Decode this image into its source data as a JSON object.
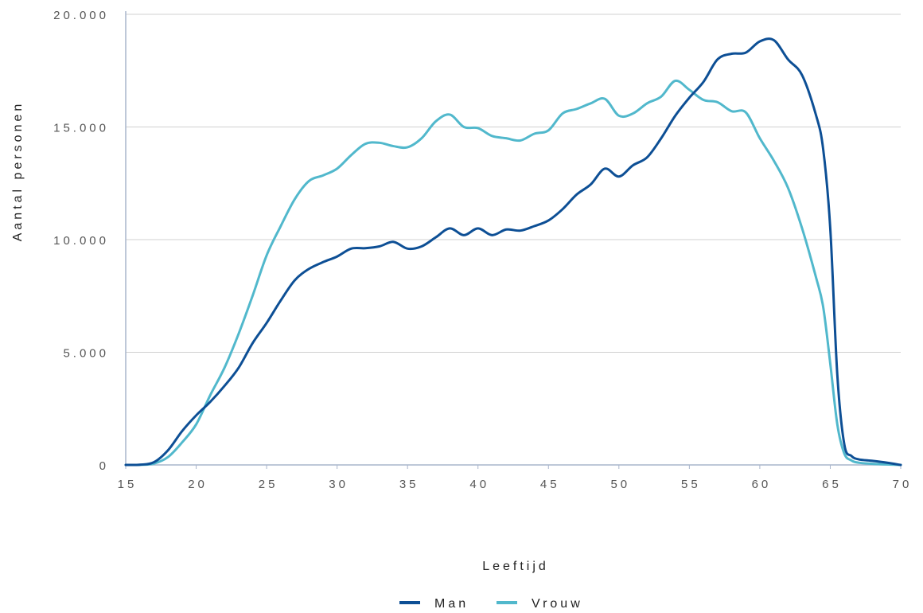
{
  "chart_data": {
    "type": "line",
    "xlabel": "Leeftijd",
    "ylabel": "Aantal personen",
    "xlim": [
      15,
      70
    ],
    "ylim": [
      0,
      20000
    ],
    "x_ticks": [
      15,
      20,
      25,
      30,
      35,
      40,
      45,
      50,
      55,
      60,
      65,
      70
    ],
    "y_ticks": [
      0,
      5000,
      10000,
      15000,
      20000
    ],
    "y_tick_labels": [
      "0",
      "5.000",
      "10.000",
      "15.000",
      "20.000"
    ],
    "grid": "horizontal",
    "legend_position": "bottom-center",
    "series": [
      {
        "name": "Man",
        "color": "#0d4f95",
        "points": [
          [
            15,
            0
          ],
          [
            16,
            10
          ],
          [
            17,
            120
          ],
          [
            18,
            650
          ],
          [
            19,
            1500
          ],
          [
            20,
            2200
          ],
          [
            21,
            2800
          ],
          [
            22,
            3500
          ],
          [
            23,
            4300
          ],
          [
            24,
            5400
          ],
          [
            25,
            6300
          ],
          [
            26,
            7300
          ],
          [
            27,
            8200
          ],
          [
            28,
            8700
          ],
          [
            29,
            9000
          ],
          [
            30,
            9250
          ],
          [
            31,
            9600
          ],
          [
            32,
            9620
          ],
          [
            33,
            9700
          ],
          [
            34,
            9900
          ],
          [
            35,
            9600
          ],
          [
            36,
            9700
          ],
          [
            37,
            10100
          ],
          [
            38,
            10500
          ],
          [
            39,
            10200
          ],
          [
            40,
            10500
          ],
          [
            41,
            10200
          ],
          [
            42,
            10450
          ],
          [
            43,
            10400
          ],
          [
            44,
            10600
          ],
          [
            45,
            10850
          ],
          [
            46,
            11350
          ],
          [
            47,
            12000
          ],
          [
            48,
            12450
          ],
          [
            49,
            13150
          ],
          [
            50,
            12800
          ],
          [
            51,
            13300
          ],
          [
            52,
            13650
          ],
          [
            53,
            14500
          ],
          [
            54,
            15500
          ],
          [
            55,
            16300
          ],
          [
            56,
            17000
          ],
          [
            57,
            18000
          ],
          [
            58,
            18250
          ],
          [
            59,
            18300
          ],
          [
            60,
            18800
          ],
          [
            61,
            18850
          ],
          [
            62,
            18000
          ],
          [
            63,
            17300
          ],
          [
            64,
            15500
          ],
          [
            64.5,
            14000
          ],
          [
            65,
            10500
          ],
          [
            65.5,
            4000
          ],
          [
            66,
            900
          ],
          [
            66.5,
            400
          ],
          [
            67,
            250
          ],
          [
            68,
            180
          ],
          [
            69,
            100
          ],
          [
            70,
            0
          ]
        ]
      },
      {
        "name": "Vrouw",
        "color": "#51b8cc",
        "points": [
          [
            15,
            0
          ],
          [
            16,
            5
          ],
          [
            17,
            60
          ],
          [
            18,
            350
          ],
          [
            19,
            1000
          ],
          [
            20,
            1800
          ],
          [
            21,
            3100
          ],
          [
            22,
            4300
          ],
          [
            23,
            5800
          ],
          [
            24,
            7500
          ],
          [
            25,
            9300
          ],
          [
            26,
            10600
          ],
          [
            27,
            11800
          ],
          [
            28,
            12600
          ],
          [
            29,
            12850
          ],
          [
            30,
            13150
          ],
          [
            31,
            13750
          ],
          [
            32,
            14250
          ],
          [
            33,
            14300
          ],
          [
            34,
            14150
          ],
          [
            35,
            14100
          ],
          [
            36,
            14500
          ],
          [
            37,
            15250
          ],
          [
            38,
            15550
          ],
          [
            39,
            15000
          ],
          [
            40,
            14950
          ],
          [
            41,
            14600
          ],
          [
            42,
            14500
          ],
          [
            43,
            14400
          ],
          [
            44,
            14700
          ],
          [
            45,
            14850
          ],
          [
            46,
            15600
          ],
          [
            47,
            15800
          ],
          [
            48,
            16050
          ],
          [
            49,
            16250
          ],
          [
            50,
            15500
          ],
          [
            51,
            15600
          ],
          [
            52,
            16050
          ],
          [
            53,
            16350
          ],
          [
            54,
            17050
          ],
          [
            55,
            16650
          ],
          [
            56,
            16200
          ],
          [
            57,
            16100
          ],
          [
            58,
            15700
          ],
          [
            59,
            15650
          ],
          [
            60,
            14500
          ],
          [
            61,
            13500
          ],
          [
            62,
            12300
          ],
          [
            63,
            10500
          ],
          [
            64,
            8300
          ],
          [
            64.5,
            7000
          ],
          [
            65,
            4500
          ],
          [
            65.5,
            1800
          ],
          [
            66,
            500
          ],
          [
            66.5,
            200
          ],
          [
            67,
            100
          ],
          [
            68,
            50
          ],
          [
            69,
            20
          ],
          [
            70,
            0
          ]
        ]
      }
    ]
  }
}
